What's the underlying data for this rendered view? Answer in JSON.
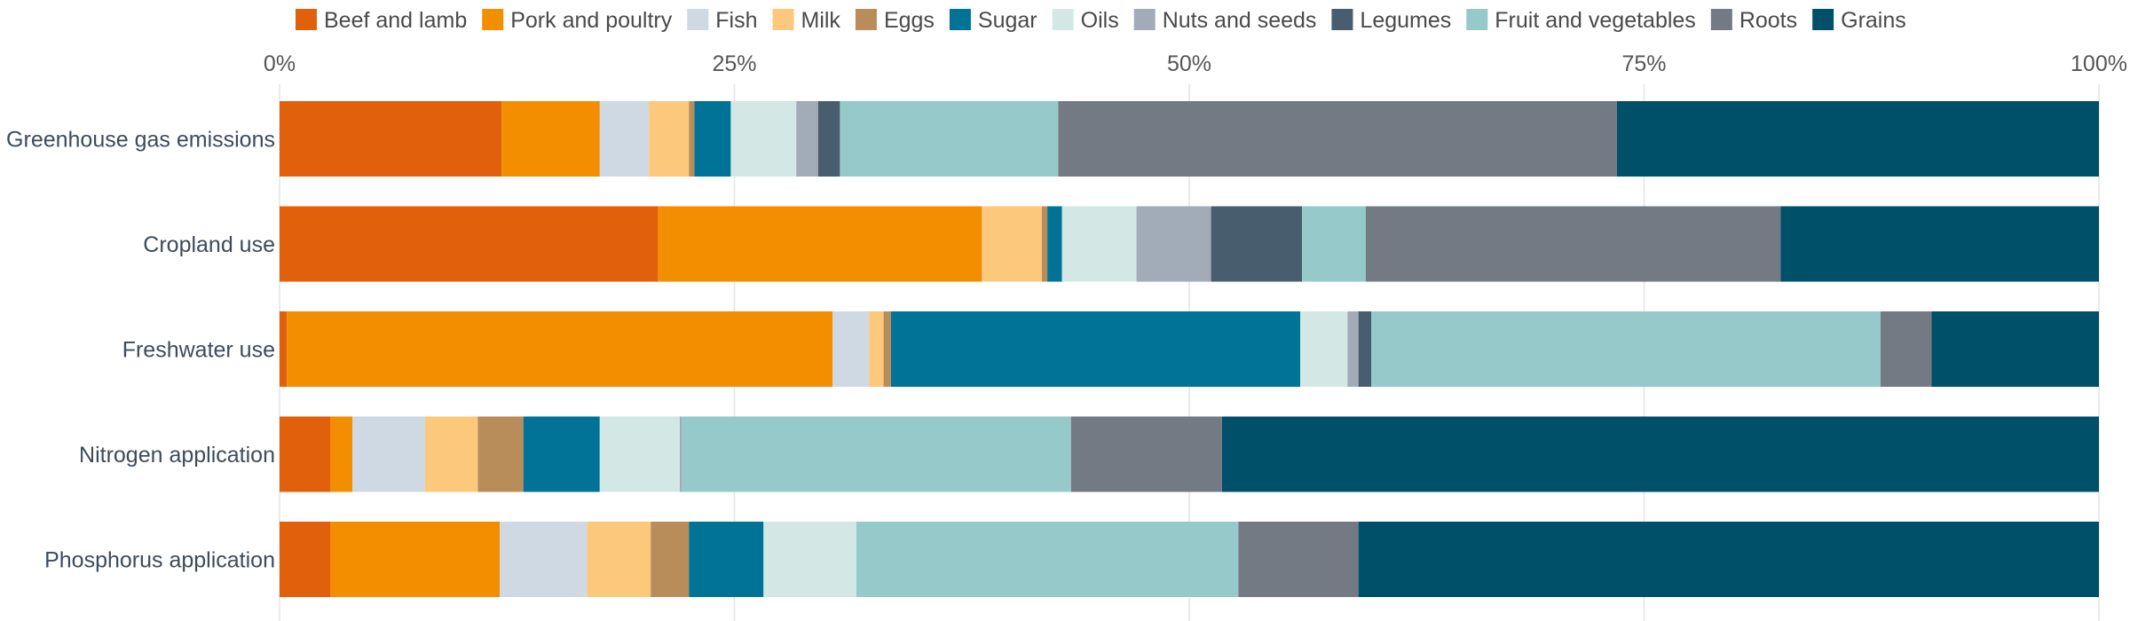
{
  "chart_data": {
    "type": "bar",
    "orientation": "horizontal",
    "stacked": true,
    "normalized": true,
    "xlim": [
      0,
      100
    ],
    "x_ticks": [
      0,
      25,
      50,
      75,
      100
    ],
    "x_tick_labels": [
      "0%",
      "25%",
      "50%",
      "75%",
      "100%"
    ],
    "x_axis_position": "top",
    "grid": true,
    "legend_position": "top",
    "categories": [
      "Greenhouse gas emissions",
      "Cropland use",
      "Freshwater use",
      "Nitrogen application",
      "Phosphorus application"
    ],
    "series": [
      {
        "name": "Beef and lamb",
        "color": "#e0600b",
        "values": [
          12.2,
          20.8,
          0.4,
          2.8,
          2.8
        ]
      },
      {
        "name": "Pork and poultry",
        "color": "#f28e00",
        "values": [
          5.4,
          17.8,
          30.0,
          1.2,
          9.3
        ]
      },
      {
        "name": "Fish",
        "color": "#cfd9e3",
        "values": [
          2.7,
          0.0,
          2.0,
          4.0,
          4.8
        ]
      },
      {
        "name": "Milk",
        "color": "#fbc87c",
        "values": [
          2.2,
          3.3,
          0.8,
          2.9,
          3.5
        ]
      },
      {
        "name": "Eggs",
        "color": "#b98d5a",
        "values": [
          0.3,
          0.3,
          0.4,
          2.5,
          2.1
        ]
      },
      {
        "name": "Sugar",
        "color": "#007396",
        "values": [
          2.0,
          0.8,
          22.5,
          4.2,
          4.1
        ]
      },
      {
        "name": "Oils",
        "color": "#d3e8e5",
        "values": [
          3.6,
          4.1,
          2.6,
          4.4,
          5.1
        ]
      },
      {
        "name": "Nuts and seeds",
        "color": "#a1acb8",
        "values": [
          1.2,
          4.1,
          0.6,
          0.1,
          0.0
        ]
      },
      {
        "name": "Legumes",
        "color": "#485d6e",
        "values": [
          1.2,
          5.0,
          0.7,
          0.0,
          0.0
        ]
      },
      {
        "name": "Fruit and vegetables",
        "color": "#96c9c9",
        "values": [
          12.0,
          3.5,
          28.0,
          21.4,
          21.0
        ]
      },
      {
        "name": "Roots",
        "color": "#737a84",
        "values": [
          30.7,
          22.8,
          2.8,
          8.3,
          6.6
        ]
      },
      {
        "name": "Grains",
        "color": "#00506a",
        "values": [
          26.5,
          17.5,
          9.2,
          48.2,
          40.7
        ]
      }
    ]
  }
}
